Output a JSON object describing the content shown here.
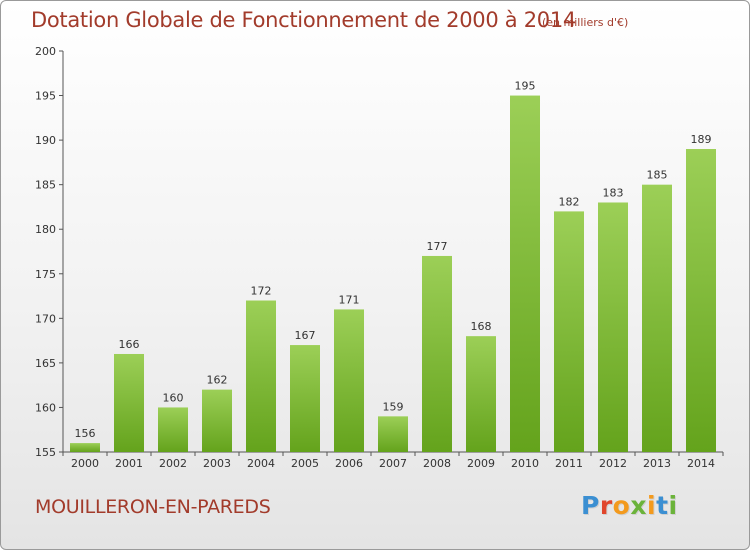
{
  "header": {
    "title": "Dotation Globale de Fonctionnement de 2000 à 2014",
    "subtitle": "(en milliers d'€)"
  },
  "footer": {
    "commune": "MOUILLERON-EN-PAREDS",
    "logo_text": "Proxiti"
  },
  "colors": {
    "title": "#a23b2b",
    "bar_light": "#9ccf57",
    "bar_dark": "#64a31c",
    "logo_letters": [
      "#3b8fd2",
      "#f39a1d",
      "#6bb33a",
      "#e0452b"
    ]
  },
  "chart_data": {
    "type": "bar",
    "categories": [
      "2000",
      "2001",
      "2002",
      "2003",
      "2004",
      "2005",
      "2006",
      "2007",
      "2008",
      "2009",
      "2010",
      "2011",
      "2012",
      "2013",
      "2014"
    ],
    "values": [
      156,
      166,
      160,
      162,
      172,
      167,
      171,
      159,
      177,
      168,
      195,
      182,
      183,
      185,
      189
    ],
    "value_labels": true,
    "ylim": [
      155,
      200
    ],
    "yticks": [
      155,
      160,
      165,
      170,
      175,
      180,
      185,
      190,
      195,
      200
    ],
    "grid": false
  }
}
